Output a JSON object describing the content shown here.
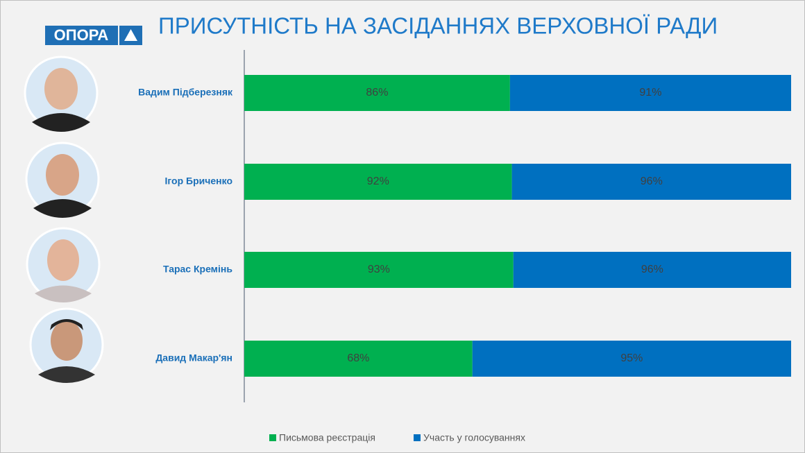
{
  "logo": "ОПОРА",
  "chart_data": {
    "type": "bar",
    "orientation": "horizontal",
    "stacked": true,
    "title": "ПРИСУТНІСТЬ НА ЗАСІДАННЯХ ВЕРХОВНОЇ РАДИ",
    "categories": [
      "Вадим Підберезняк",
      "Ігор Бриченко",
      "Тарас Кремінь",
      "Давид Макар'ян"
    ],
    "series": [
      {
        "name": "Письмова реєстрація",
        "color": "#00b050",
        "values": [
          86,
          92,
          93,
          68
        ],
        "value_labels": [
          "86%",
          "92%",
          "93%",
          "68%"
        ]
      },
      {
        "name": "Участь у голосуваннях",
        "color": "#0070c0",
        "values": [
          91,
          96,
          96,
          95
        ],
        "value_labels": [
          "91%",
          "96%",
          "96%",
          "95%"
        ]
      }
    ],
    "legend": "bottom"
  }
}
